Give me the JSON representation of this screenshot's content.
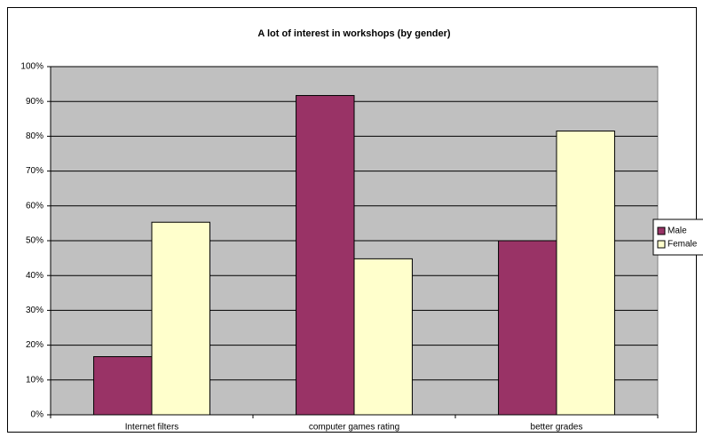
{
  "chart_data": {
    "type": "bar",
    "title": "A lot of interest in workshops (by gender)",
    "categories": [
      "Internet filters",
      "computer games rating",
      "better grades"
    ],
    "series": [
      {
        "name": "Male",
        "color": "#993366",
        "values": [
          16.7,
          91.7,
          50
        ]
      },
      {
        "name": "Female",
        "color": "#ffffcc",
        "values": [
          55.3,
          44.8,
          81.5
        ]
      }
    ],
    "ylim": [
      0,
      100
    ],
    "yticks": [
      {
        "value": 0,
        "label": "0%"
      },
      {
        "value": 10,
        "label": "10%"
      },
      {
        "value": 20,
        "label": "20%"
      },
      {
        "value": 30,
        "label": "30%"
      },
      {
        "value": 40,
        "label": "40%"
      },
      {
        "value": 50,
        "label": "50%"
      },
      {
        "value": 60,
        "label": "60%"
      },
      {
        "value": 70,
        "label": "70%"
      },
      {
        "value": 80,
        "label": "80%"
      },
      {
        "value": 90,
        "label": "90%"
      },
      {
        "value": 100,
        "label": "100%"
      }
    ],
    "grid": true,
    "legend": "right",
    "plot_background": "#c0c0c0"
  }
}
